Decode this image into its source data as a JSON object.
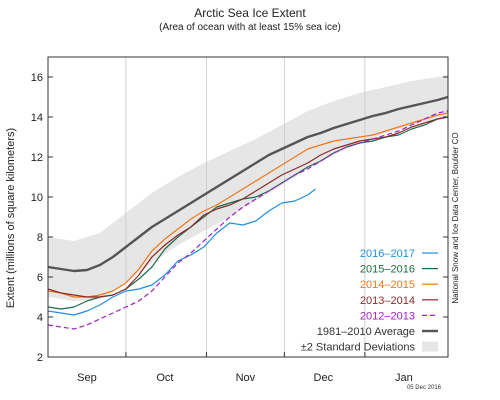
{
  "chart_data": {
    "type": "line",
    "title": "Arctic Sea Ice Extent",
    "subtitle": "(Area of ocean with at least 15% sea ice)",
    "ylabel": "Extent (millions of square kilometers)",
    "xlabel": "",
    "ylim": [
      2,
      17
    ],
    "yticks": [
      2,
      4,
      6,
      8,
      10,
      12,
      14,
      16
    ],
    "xlim": [
      0,
      154
    ],
    "x_tick_labels": [
      {
        "label": "Sep",
        "x": 15
      },
      {
        "label": "Oct",
        "x": 45
      },
      {
        "label": "Nov",
        "x": 76
      },
      {
        "label": "Dec",
        "x": 106
      },
      {
        "label": "Jan",
        "x": 137
      }
    ],
    "x_gridlines_at": [
      30,
      61,
      91,
      122
    ],
    "x_unit": "day since Aug 15",
    "credit": "National Snow and Ice Data Center, Boulder CO",
    "date_stamp": "05 Dec 2016",
    "band": {
      "name": "±2 Standard Deviations",
      "color": "#e6e6e6",
      "x": [
        0,
        10,
        20,
        30,
        40,
        50,
        60,
        70,
        80,
        90,
        100,
        110,
        120,
        130,
        140,
        150,
        154
      ],
      "lower": [
        5.0,
        4.8,
        4.9,
        5.7,
        6.7,
        7.6,
        8.3,
        9.0,
        9.8,
        10.6,
        11.4,
        12.1,
        12.7,
        13.2,
        13.6,
        13.9,
        14.0
      ],
      "upper": [
        8.0,
        7.8,
        8.2,
        9.2,
        10.2,
        11.0,
        11.7,
        12.3,
        12.9,
        13.6,
        14.3,
        14.8,
        15.2,
        15.5,
        15.8,
        16.0,
        16.1
      ]
    },
    "series": [
      {
        "name": "2016–2017",
        "color": "#1f8fe0",
        "dash": "",
        "width": 1.2,
        "x": [
          0,
          5,
          10,
          15,
          20,
          25,
          30,
          35,
          40,
          45,
          50,
          55,
          60,
          65,
          70,
          75,
          80,
          85,
          90,
          95,
          100,
          103
        ],
        "y": [
          4.3,
          4.2,
          4.1,
          4.3,
          4.6,
          5.0,
          5.3,
          5.4,
          5.6,
          6.1,
          6.8,
          7.1,
          7.5,
          8.2,
          8.7,
          8.6,
          8.8,
          9.3,
          9.7,
          9.8,
          10.1,
          10.4
        ]
      },
      {
        "name": "2015–2016",
        "color": "#1d6b4a",
        "dash": "",
        "width": 1.2,
        "x": [
          0,
          5,
          10,
          15,
          20,
          25,
          30,
          35,
          40,
          45,
          50,
          55,
          60,
          65,
          70,
          75,
          80,
          85,
          90,
          95,
          100,
          105,
          110,
          115,
          120,
          125,
          130,
          135,
          140,
          145,
          150,
          154
        ],
        "y": [
          4.5,
          4.4,
          4.5,
          4.8,
          5.0,
          5.1,
          5.4,
          5.9,
          6.5,
          7.4,
          8.0,
          8.5,
          9.0,
          9.5,
          9.7,
          9.9,
          10.0,
          10.3,
          10.7,
          11.1,
          11.5,
          11.8,
          12.2,
          12.5,
          12.7,
          12.8,
          13.0,
          13.1,
          13.4,
          13.6,
          13.9,
          14.0
        ]
      },
      {
        "name": "2014–2015",
        "color": "#f07818",
        "dash": "",
        "width": 1.2,
        "x": [
          0,
          5,
          10,
          15,
          20,
          25,
          30,
          35,
          40,
          45,
          50,
          55,
          60,
          65,
          70,
          75,
          80,
          85,
          90,
          95,
          100,
          105,
          110,
          115,
          120,
          125,
          130,
          135,
          140,
          145,
          150,
          154
        ],
        "y": [
          5.3,
          5.2,
          5.0,
          5.0,
          5.1,
          5.3,
          5.7,
          6.4,
          7.3,
          7.9,
          8.4,
          8.9,
          9.3,
          9.6,
          10.0,
          10.4,
          10.8,
          11.2,
          11.6,
          12.0,
          12.4,
          12.6,
          12.8,
          12.9,
          13.0,
          13.1,
          13.3,
          13.5,
          13.7,
          13.9,
          14.1,
          14.2
        ]
      },
      {
        "name": "2013–2014",
        "color": "#8b2a2a",
        "dash": "",
        "width": 1.2,
        "x": [
          0,
          5,
          10,
          15,
          20,
          25,
          30,
          35,
          40,
          45,
          50,
          55,
          60,
          65,
          70,
          75,
          80,
          85,
          90,
          95,
          100,
          105,
          110,
          115,
          120,
          125,
          130,
          135,
          140,
          145,
          150,
          154
        ],
        "y": [
          5.4,
          5.2,
          5.1,
          5.0,
          5.0,
          5.1,
          5.4,
          6.1,
          7.0,
          7.6,
          8.1,
          8.5,
          9.1,
          9.4,
          9.6,
          9.9,
          10.3,
          10.7,
          11.1,
          11.4,
          11.7,
          12.1,
          12.4,
          12.6,
          12.8,
          12.9,
          13.0,
          13.2,
          13.5,
          13.7,
          13.9,
          14.0
        ]
      },
      {
        "name": "2012–2013",
        "color": "#a020c0",
        "dash": "5,3",
        "width": 1.2,
        "x": [
          0,
          5,
          10,
          15,
          20,
          25,
          30,
          35,
          40,
          45,
          50,
          55,
          60,
          65,
          70,
          75,
          80,
          85,
          90,
          95,
          100,
          105,
          110,
          115,
          120,
          125,
          130,
          135,
          140,
          145,
          150,
          154
        ],
        "y": [
          3.6,
          3.5,
          3.4,
          3.6,
          3.9,
          4.2,
          4.5,
          4.8,
          5.3,
          6.0,
          6.7,
          7.2,
          7.8,
          8.4,
          9.0,
          9.5,
          9.9,
          10.3,
          10.7,
          11.1,
          11.4,
          11.8,
          12.2,
          12.5,
          12.7,
          12.9,
          13.1,
          13.3,
          13.6,
          13.9,
          14.2,
          14.3
        ]
      },
      {
        "name": "1981–2010 Average",
        "color": "#555555",
        "dash": "",
        "width": 2.4,
        "x": [
          0,
          5,
          10,
          15,
          20,
          25,
          30,
          35,
          40,
          45,
          50,
          55,
          60,
          65,
          70,
          75,
          80,
          85,
          90,
          95,
          100,
          105,
          110,
          115,
          120,
          125,
          130,
          135,
          140,
          145,
          150,
          154
        ],
        "y": [
          6.5,
          6.4,
          6.3,
          6.35,
          6.6,
          7.0,
          7.5,
          8.0,
          8.5,
          8.9,
          9.3,
          9.7,
          10.1,
          10.5,
          10.9,
          11.3,
          11.7,
          12.1,
          12.4,
          12.7,
          13.0,
          13.2,
          13.45,
          13.65,
          13.85,
          14.05,
          14.2,
          14.4,
          14.55,
          14.7,
          14.85,
          15.0
        ]
      }
    ],
    "legend": {
      "placement": "bottom-right",
      "entries": [
        {
          "label": "2016–2017",
          "color": "#1f8fe0",
          "kind": "line",
          "dash": "",
          "width": 1.2
        },
        {
          "label": "2015–2016",
          "color": "#1d6b4a",
          "kind": "line",
          "dash": "",
          "width": 1.2
        },
        {
          "label": "2014–2015",
          "color": "#f07818",
          "kind": "line",
          "dash": "",
          "width": 1.2
        },
        {
          "label": "2013–2014",
          "color": "#8b2a2a",
          "kind": "line",
          "dash": "",
          "width": 1.2
        },
        {
          "label": "2012–2013",
          "color": "#a020c0",
          "kind": "line",
          "dash": "5,3",
          "width": 1.2
        },
        {
          "label": "1981–2010 Average",
          "color": "#555555",
          "kind": "line",
          "dash": "",
          "width": 2.4
        },
        {
          "label": "±2 Standard Deviations",
          "color": "#e6e6e6",
          "kind": "box",
          "dash": "",
          "width": 0
        }
      ]
    }
  }
}
